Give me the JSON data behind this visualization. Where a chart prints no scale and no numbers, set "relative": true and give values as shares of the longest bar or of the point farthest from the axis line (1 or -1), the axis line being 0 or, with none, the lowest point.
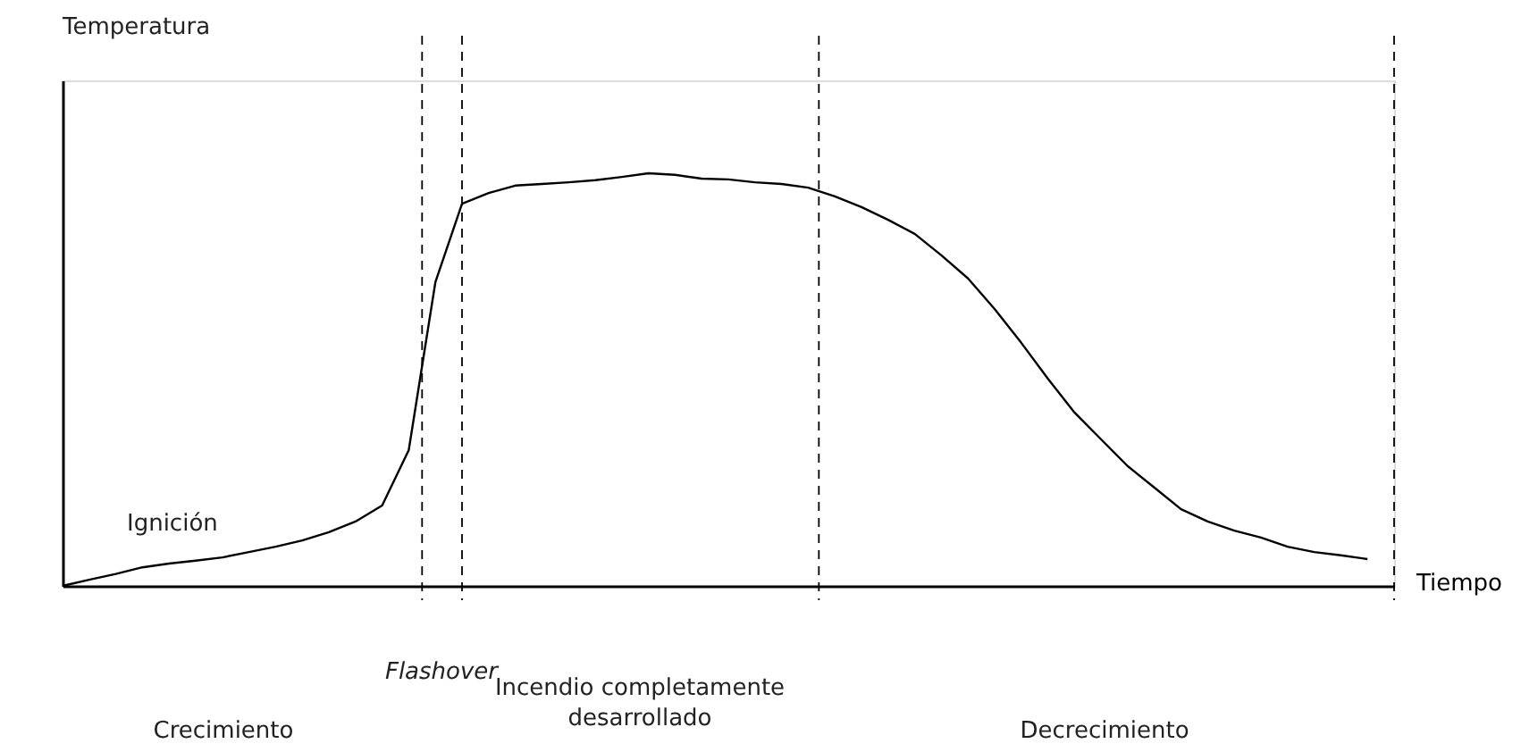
{
  "chart_data": {
    "type": "line",
    "relative": true,
    "xlabel": "Tiempo",
    "categories": [
      null,
      null,
      null,
      null,
      null,
      null,
      null,
      null,
      null,
      null,
      null,
      null,
      null,
      null,
      null,
      null,
      null,
      null,
      null,
      null,
      null,
      null,
      null,
      null,
      null,
      null,
      null,
      null,
      null,
      null,
      null,
      null,
      null,
      null,
      null,
      null,
      null,
      null,
      null,
      null,
      null,
      null,
      null,
      null,
      null,
      null,
      null,
      null,
      null,
      null,
      null
    ],
    "series": [
      {
        "color": "#000000",
        "values": [
          0,
          0.015,
          0.029,
          0.045,
          0.054,
          0.061,
          0.069,
          0.082,
          0.095,
          0.11,
          0.13,
          0.156,
          0.195,
          0.329,
          0.736,
          0.926,
          0.952,
          0.97,
          0.974,
          0.978,
          0.983,
          0.991,
          1,
          0.996,
          0.987,
          0.985,
          0.978,
          0.974,
          0.965,
          0.944,
          0.918,
          0.887,
          0.853,
          0.801,
          0.745,
          0.671,
          0.589,
          0.502,
          0.42,
          0.355,
          0.29,
          0.238,
          0.186,
          0.156,
          0.134,
          0.117,
          0.095,
          0.082,
          0.074,
          0.065,
          null
        ]
      }
    ],
    "annotations": [
      "Temperatura",
      "Ignición",
      "Flashover",
      "Crecimiento",
      "Incendio completamente\ndesarrollado",
      "Decrecimiento"
    ],
    "grid": false,
    "line_style": "solid",
    "marker": "none",
    "tick_labels": false
  }
}
